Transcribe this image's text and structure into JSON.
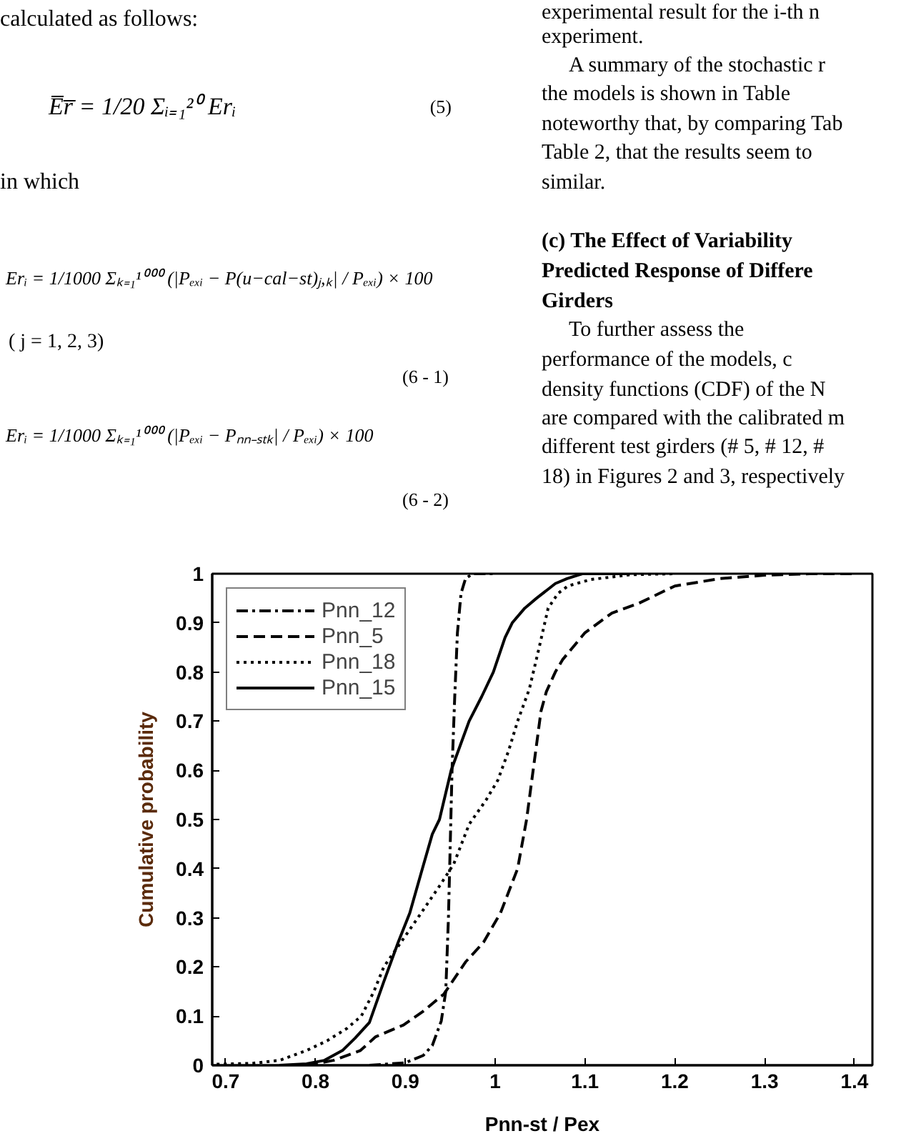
{
  "chart_data": {
    "type": "line",
    "xlabel": "Pnn-st / Pex",
    "ylabel": "Cumulative probability",
    "xlim": [
      0.685,
      1.42
    ],
    "xticks": [
      0.7,
      0.8,
      0.9,
      1,
      1.1,
      1.2,
      1.3,
      1.4
    ],
    "ylim": [
      0,
      1
    ],
    "yticks": [
      0,
      0.1,
      0.2,
      0.3,
      0.4,
      0.5,
      0.6,
      0.7,
      0.8,
      0.9,
      1
    ],
    "legend": "top left",
    "series": [
      {
        "name": "Pnn_12",
        "color": "#000000",
        "line_style": "dashdot",
        "x": [
          0.86,
          0.9,
          0.92,
          0.93,
          0.94,
          0.945,
          0.948,
          0.95,
          0.952,
          0.955,
          0.958,
          0.962,
          0.967,
          0.975,
          1.0
        ],
        "values": [
          0,
          0.005,
          0.02,
          0.04,
          0.09,
          0.15,
          0.3,
          0.45,
          0.6,
          0.75,
          0.88,
          0.96,
          0.99,
          1,
          1
        ]
      },
      {
        "name": "Pnn_5",
        "color": "#000000",
        "line_style": "dashed",
        "x": [
          0.79,
          0.82,
          0.85,
          0.867,
          0.898,
          0.92,
          0.943,
          0.967,
          0.987,
          1.006,
          1.025,
          1.035,
          1.043,
          1.051,
          1.057,
          1.067,
          1.075,
          1.1,
          1.13,
          1.16,
          1.2,
          1.25,
          1.3,
          1.35,
          1.4
        ],
        "values": [
          0,
          0.01,
          0.03,
          0.058,
          0.082,
          0.11,
          0.145,
          0.21,
          0.25,
          0.31,
          0.4,
          0.5,
          0.61,
          0.72,
          0.76,
          0.8,
          0.825,
          0.88,
          0.92,
          0.94,
          0.975,
          0.99,
          0.997,
          1,
          1
        ]
      },
      {
        "name": "Pnn_18",
        "color": "#000000",
        "line_style": "dotted",
        "x": [
          0.69,
          0.73,
          0.76,
          0.79,
          0.813,
          0.835,
          0.851,
          0.865,
          0.876,
          0.895,
          0.914,
          0.94,
          0.954,
          0.971,
          0.99,
          1.003,
          1.015,
          1.025,
          1.038,
          1.049,
          1.059,
          1.07,
          1.081,
          1.106,
          1.15,
          1.2
        ],
        "values": [
          0.002,
          0.004,
          0.01,
          0.03,
          0.05,
          0.075,
          0.1,
          0.15,
          0.2,
          0.25,
          0.3,
          0.37,
          0.41,
          0.49,
          0.54,
          0.58,
          0.64,
          0.7,
          0.765,
          0.85,
          0.93,
          0.96,
          0.975,
          0.988,
          0.998,
          1
        ]
      },
      {
        "name": "Pnn_15",
        "color": "#000000",
        "line_style": "solid",
        "x": [
          0.76,
          0.79,
          0.81,
          0.83,
          0.844,
          0.86,
          0.876,
          0.892,
          0.905,
          0.919,
          0.93,
          0.938,
          0.951,
          0.961,
          0.971,
          0.985,
          0.998,
          1.011,
          1.019,
          1.033,
          1.046,
          1.067,
          1.08,
          1.097,
          1.15
        ],
        "values": [
          0,
          0.003,
          0.01,
          0.03,
          0.055,
          0.087,
          0.17,
          0.25,
          0.31,
          0.4,
          0.47,
          0.5,
          0.6,
          0.65,
          0.7,
          0.75,
          0.8,
          0.87,
          0.9,
          0.93,
          0.95,
          0.98,
          0.99,
          1,
          1
        ]
      }
    ],
    "annotations": [
      "calculated as follows:",
      "E̅r̅ = 1/20 Σᵢ₌₁²⁰ Erᵢ",
      "(5)",
      "in which",
      "Erᵢ = 1/1000 Σₖ₌₁¹⁰⁰⁰ (|Pₑₓᵢ − P(u−cal−st)ⱼ,ₖ| / Pₑₓᵢ) × 100",
      "( j = 1, 2, 3)",
      "(6 - 1)",
      "Erᵢ = 1/1000 Σₖ₌₁¹⁰⁰⁰ (|Pₑₓᵢ − Pₙₙ₋ₛₜₖ| / Pₑₓᵢ) × 100",
      "(6 - 2)",
      "experimental result for the i-th n",
      "experiment.",
      "A summary of the stochastic r",
      "the models is shown in Table",
      "noteworthy that, by comparing Tab",
      "Table 2, that the results seem to",
      "similar.",
      "(c) The Effect of Variability",
      "Predicted Response of Differe",
      "Girders",
      "To further assess the",
      "performance of the models, c",
      "density functions (CDF) of the N",
      "are compared with the calibrated m",
      "different test girders (# 5, # 12, #",
      "18) in Figures 2 and 3, respectively"
    ]
  }
}
